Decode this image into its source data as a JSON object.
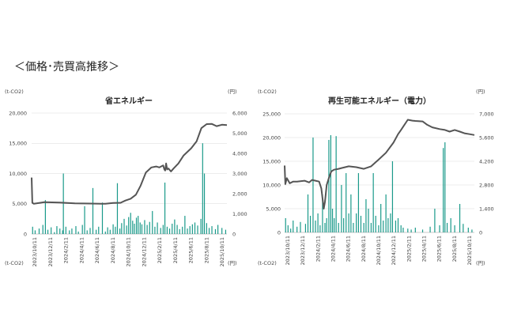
{
  "heading": "＜価格･売買高推移＞",
  "chart_data": [
    {
      "type": "bar+line",
      "title": "省エネルギー",
      "unit_left_top": "(t-CO2)",
      "unit_right_top": "(円)",
      "unit_left_bottom": "(t-CO2)",
      "unit_right_bottom": "(円)",
      "left_axis": {
        "ylim": [
          0,
          20000
        ],
        "ticks": [
          "0",
          "5,000",
          "10,000",
          "15,000",
          "20,000"
        ],
        "values": [
          0,
          5000,
          10000,
          15000,
          20000
        ]
      },
      "right_axis": {
        "ylim": [
          0,
          6000
        ],
        "ticks": [
          "0",
          "1,000",
          "2,000",
          "3,000",
          "4,000",
          "5,000",
          "6,000"
        ],
        "values": [
          0,
          1000,
          2000,
          3000,
          4000,
          5000,
          6000
        ]
      },
      "x_range": [
        "2023/10/11",
        "2025/11/30"
      ],
      "x_ticks": [
        "2023/10/11",
        "2023/12/11",
        "2024/2/11",
        "2024/4/11",
        "2024/6/11",
        "2024/8/11",
        "2024/10/11",
        "2024/12/11",
        "2025/2/11",
        "2025/4/11",
        "2025/6/11",
        "2025/8/11",
        "2025/10/11"
      ],
      "grid": true,
      "series": [
        {
          "kind": "bar",
          "axis": "left",
          "color": "#1a9a8a",
          "points": [
            [
              "2023/10/15",
              1200
            ],
            [
              "2023/10/25",
              600
            ],
            [
              "2023/11/10",
              900
            ],
            [
              "2023/11/25",
              1500
            ],
            [
              "2023/12/05",
              5600
            ],
            [
              "2023/12/15",
              700
            ],
            [
              "2023/12/28",
              1100
            ],
            [
              "2024/01/10",
              300
            ],
            [
              "2024/01/20",
              1300
            ],
            [
              "2024/02/01",
              900
            ],
            [
              "2024/02/12",
              600
            ],
            [
              "2024/02/15",
              10000
            ],
            [
              "2024/02/25",
              1200
            ],
            [
              "2024/03/10",
              600
            ],
            [
              "2024/03/20",
              900
            ],
            [
              "2024/04/05",
              1300
            ],
            [
              "2024/04/15",
              400
            ],
            [
              "2024/05/01",
              1500
            ],
            [
              "2024/05/10",
              4600
            ],
            [
              "2024/05/20",
              600
            ],
            [
              "2024/06/01",
              1000
            ],
            [
              "2024/06/12",
              7600
            ],
            [
              "2024/06/25",
              700
            ],
            [
              "2024/07/05",
              1200
            ],
            [
              "2024/07/20",
              5200
            ],
            [
              "2024/08/01",
              400
            ],
            [
              "2024/08/10",
              1100
            ],
            [
              "2024/08/20",
              700
            ],
            [
              "2024/09/01",
              1600
            ],
            [
              "2024/09/10",
              1200
            ],
            [
              "2024/09/18",
              8400
            ],
            [
              "2024/09/28",
              900
            ],
            [
              "2024/10/05",
              1800
            ],
            [
              "2024/10/15",
              2500
            ],
            [
              "2024/10/25",
              1400
            ],
            [
              "2024/11/02",
              2800
            ],
            [
              "2024/11/10",
              3500
            ],
            [
              "2024/11/18",
              2200
            ],
            [
              "2024/11/25",
              1700
            ],
            [
              "2024/12/03",
              2700
            ],
            [
              "2024/12/10",
              3000
            ],
            [
              "2024/12/18",
              1900
            ],
            [
              "2024/12/25",
              1600
            ],
            [
              "2025/01/05",
              2300
            ],
            [
              "2025/01/15",
              1500
            ],
            [
              "2025/01/25",
              2000
            ],
            [
              "2025/02/05",
              3800
            ],
            [
              "2025/02/15",
              1200
            ],
            [
              "2025/02/25",
              1900
            ],
            [
              "2025/03/10",
              1000
            ],
            [
              "2025/03/20",
              1500
            ],
            [
              "2025/03/27",
              8500
            ],
            [
              "2025/04/05",
              1200
            ],
            [
              "2025/04/15",
              900
            ],
            [
              "2025/04/25",
              1700
            ],
            [
              "2025/05/05",
              2400
            ],
            [
              "2025/05/15",
              1500
            ],
            [
              "2025/05/25",
              800
            ],
            [
              "2025/06/05",
              1200
            ],
            [
              "2025/06/15",
              3000
            ],
            [
              "2025/06/25",
              900
            ],
            [
              "2025/07/05",
              1300
            ],
            [
              "2025/07/15",
              1600
            ],
            [
              "2025/07/25",
              1900
            ],
            [
              "2025/08/05",
              1400
            ],
            [
              "2025/08/18",
              2500
            ],
            [
              "2025/08/25",
              15000
            ],
            [
              "2025/09/01",
              10000
            ],
            [
              "2025/09/10",
              1800
            ],
            [
              "2025/09/20",
              1000
            ],
            [
              "2025/10/01",
              1300
            ],
            [
              "2025/10/15",
              800
            ],
            [
              "2025/10/25",
              1500
            ],
            [
              "2025/11/10",
              1000
            ],
            [
              "2025/11/25",
              700
            ]
          ]
        },
        {
          "kind": "line",
          "axis": "right",
          "color": "#555555",
          "points": [
            [
              "2023/10/11",
              2800
            ],
            [
              "2023/10/14",
              1550
            ],
            [
              "2023/10/20",
              1500
            ],
            [
              "2023/12/01",
              1580
            ],
            [
              "2024/02/01",
              1560
            ],
            [
              "2024/04/01",
              1520
            ],
            [
              "2024/06/01",
              1510
            ],
            [
              "2024/08/01",
              1500
            ],
            [
              "2024/09/01",
              1540
            ],
            [
              "2024/10/01",
              1550
            ],
            [
              "2024/10/20",
              1660
            ],
            [
              "2024/11/10",
              1750
            ],
            [
              "2024/12/01",
              1950
            ],
            [
              "2024/12/20",
              2400
            ],
            [
              "2025/01/10",
              3050
            ],
            [
              "2025/02/01",
              3300
            ],
            [
              "2025/02/20",
              3350
            ],
            [
              "2025/03/05",
              3300
            ],
            [
              "2025/03/20",
              3400
            ],
            [
              "2025/03/25",
              3200
            ],
            [
              "2025/03/28",
              3150
            ],
            [
              "2025/04/01",
              3500
            ],
            [
              "2025/04/05",
              3200
            ],
            [
              "2025/04/10",
              3250
            ],
            [
              "2025/04/20",
              3100
            ],
            [
              "2025/05/01",
              3250
            ],
            [
              "2025/05/20",
              3500
            ],
            [
              "2025/06/10",
              3900
            ],
            [
              "2025/07/10",
              4250
            ],
            [
              "2025/08/01",
              4600
            ],
            [
              "2025/08/20",
              5250
            ],
            [
              "2025/09/10",
              5450
            ],
            [
              "2025/10/01",
              5460
            ],
            [
              "2025/10/20",
              5350
            ],
            [
              "2025/11/10",
              5420
            ],
            [
              "2025/11/30",
              5400
            ]
          ]
        }
      ]
    },
    {
      "type": "bar+line",
      "title": "再生可能エネルギー（電力）",
      "unit_left_top": "(t-CO2)",
      "unit_right_top": "(円)",
      "unit_left_bottom": "(t-CO2)",
      "unit_right_bottom": "(円)",
      "left_axis": {
        "ylim": [
          0,
          25000
        ],
        "ticks": [
          "0",
          "5,000",
          "10,000",
          "15,000",
          "20,000",
          "25,000"
        ],
        "values": [
          0,
          5000,
          10000,
          15000,
          20000,
          25000
        ]
      },
      "right_axis": {
        "ylim": [
          0,
          7000
        ],
        "ticks": [
          "0",
          "1,400",
          "2,800",
          "4,200",
          "5,600",
          "7,000"
        ],
        "values": [
          0,
          1400,
          2800,
          4200,
          5600,
          7000
        ]
      },
      "x_range": [
        "2023/10/11",
        "2025/11/30"
      ],
      "x_ticks": [
        "2023/10/11",
        "2023/12/11",
        "2024/2/11",
        "2024/4/11",
        "2024/6/11",
        "2024/8/11",
        "2024/10/11",
        "2024/12/11",
        "2025/2/11",
        "2025/4/11",
        "2025/6/11",
        "2025/8/11",
        "2025/10/11"
      ],
      "grid": true,
      "series": [
        {
          "kind": "bar",
          "axis": "left",
          "color": "#1a9a8a",
          "points": [
            [
              "2023/10/15",
              3000
            ],
            [
              "2023/10/25",
              1500
            ],
            [
              "2023/11/05",
              800
            ],
            [
              "2023/11/15",
              2500
            ],
            [
              "2023/12/01",
              1200
            ],
            [
              "2023/12/15",
              2200
            ],
            [
              "2024/01/05",
              1800
            ],
            [
              "2024/01/15",
              8000
            ],
            [
              "2024/01/25",
              3500
            ],
            [
              "2024/02/05",
              20000
            ],
            [
              "2024/02/15",
              2500
            ],
            [
              "2024/02/25",
              4000
            ],
            [
              "2024/03/05",
              1500
            ],
            [
              "2024/03/15",
              8000
            ],
            [
              "2024/03/25",
              2000
            ],
            [
              "2024/04/01",
              3000
            ],
            [
              "2024/04/10",
              19500
            ],
            [
              "2024/04/18",
              20500
            ],
            [
              "2024/04/25",
              5000
            ],
            [
              "2024/05/02",
              3000
            ],
            [
              "2024/05/10",
              20300
            ],
            [
              "2024/05/20",
              2000
            ],
            [
              "2024/06/01",
              10000
            ],
            [
              "2024/06/10",
              3000
            ],
            [
              "2024/06/20",
              12500
            ],
            [
              "2024/07/01",
              4000
            ],
            [
              "2024/07/10",
              8000
            ],
            [
              "2024/07/20",
              2000
            ],
            [
              "2024/08/01",
              4000
            ],
            [
              "2024/08/10",
              12500
            ],
            [
              "2024/08/20",
              3500
            ],
            [
              "2024/09/01",
              2000
            ],
            [
              "2024/09/10",
              7000
            ],
            [
              "2024/09/20",
              5000
            ],
            [
              "2024/10/01",
              2000
            ],
            [
              "2024/10/10",
              12500
            ],
            [
              "2024/10/20",
              3500
            ],
            [
              "2024/11/01",
              1500
            ],
            [
              "2024/11/10",
              6000
            ],
            [
              "2024/11/20",
              2500
            ],
            [
              "2024/12/01",
              8000
            ],
            [
              "2024/12/10",
              3000
            ],
            [
              "2024/12/20",
              4000
            ],
            [
              "2024/12/28",
              15000
            ],
            [
              "2025/01/10",
              2500
            ],
            [
              "2025/01/20",
              3000
            ],
            [
              "2025/02/01",
              1500
            ],
            [
              "2025/02/10",
              1000
            ],
            [
              "2025/03/01",
              800
            ],
            [
              "2025/03/15",
              600
            ],
            [
              "2025/04/01",
              1000
            ],
            [
              "2025/05/01",
              600
            ],
            [
              "2025/06/01",
              1200
            ],
            [
              "2025/06/20",
              5000
            ],
            [
              "2025/07/10",
              1500
            ],
            [
              "2025/07/25",
              17800
            ],
            [
              "2025/08/01",
              19000
            ],
            [
              "2025/08/10",
              2000
            ],
            [
              "2025/08/25",
              3000
            ],
            [
              "2025/09/10",
              1500
            ],
            [
              "2025/10/01",
              6000
            ],
            [
              "2025/10/15",
              1800
            ],
            [
              "2025/11/05",
              1000
            ],
            [
              "2025/11/20",
              600
            ]
          ]
        },
        {
          "kind": "line",
          "axis": "right",
          "color": "#555555",
          "points": [
            [
              "2023/10/11",
              3950
            ],
            [
              "2023/10/14",
              2850
            ],
            [
              "2023/10/20",
              3200
            ],
            [
              "2023/11/01",
              2900
            ],
            [
              "2023/11/15",
              3000
            ],
            [
              "2023/12/01",
              3000
            ],
            [
              "2024/01/01",
              3050
            ],
            [
              "2024/01/20",
              2950
            ],
            [
              "2024/02/01",
              3100
            ],
            [
              "2024/02/15",
              3050
            ],
            [
              "2024/03/01",
              3000
            ],
            [
              "2024/03/10",
              2600
            ],
            [
              "2024/03/20",
              1400
            ],
            [
              "2024/03/25",
              1800
            ],
            [
              "2024/04/01",
              2800
            ],
            [
              "2024/04/10",
              3200
            ],
            [
              "2024/04/20",
              3600
            ],
            [
              "2024/05/01",
              3700
            ],
            [
              "2024/05/20",
              3750
            ],
            [
              "2024/06/01",
              3800
            ],
            [
              "2024/07/01",
              3900
            ],
            [
              "2024/08/01",
              3850
            ],
            [
              "2024/09/01",
              3750
            ],
            [
              "2024/10/01",
              3900
            ],
            [
              "2024/11/01",
              4300
            ],
            [
              "2024/12/01",
              4700
            ],
            [
              "2025/01/01",
              5300
            ],
            [
              "2025/01/20",
              5800
            ],
            [
              "2025/02/01",
              6050
            ],
            [
              "2025/03/01",
              6650
            ],
            [
              "2025/03/20",
              6600
            ],
            [
              "2025/04/01",
              6580
            ],
            [
              "2025/05/01",
              6550
            ],
            [
              "2025/05/20",
              6350
            ],
            [
              "2025/06/10",
              6200
            ],
            [
              "2025/07/10",
              6100
            ],
            [
              "2025/08/01",
              6050
            ],
            [
              "2025/08/20",
              5950
            ],
            [
              "2025/09/10",
              6050
            ],
            [
              "2025/10/01",
              5950
            ],
            [
              "2025/10/20",
              5850
            ],
            [
              "2025/11/10",
              5800
            ],
            [
              "2025/11/30",
              5750
            ]
          ]
        }
      ]
    }
  ]
}
